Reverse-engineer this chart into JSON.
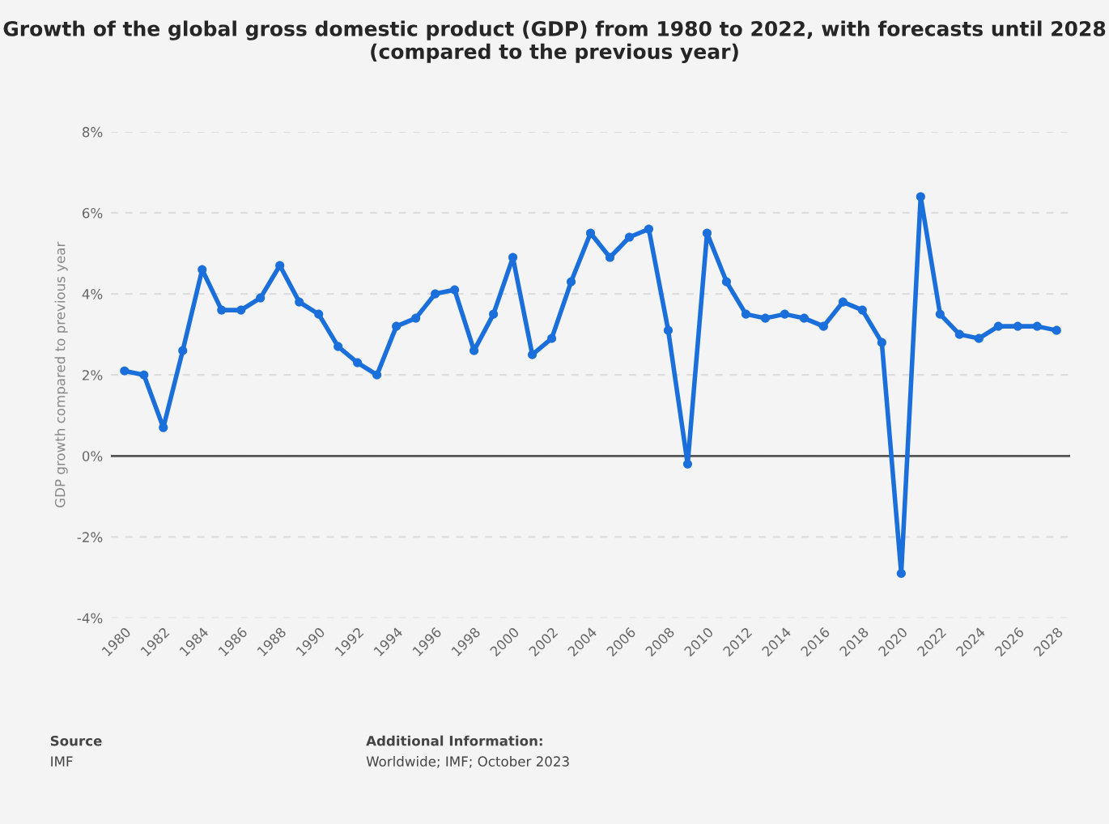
{
  "chart_data": {
    "type": "line",
    "title": "Growth of the global gross domestic product (GDP) from 1980 to 2022, with forecasts until 2028 (compared to the previous year)",
    "ylabel": "GDP growth compared to previous year",
    "categories": [
      "1980",
      null,
      "1982",
      null,
      "1984",
      null,
      "1986",
      null,
      "1988",
      null,
      "1990",
      null,
      "1992",
      null,
      "1994",
      null,
      "1996",
      null,
      "1998",
      null,
      "2000",
      null,
      "2002",
      null,
      "2004",
      null,
      "2006",
      null,
      "2008",
      null,
      "2010",
      null,
      "2012",
      null,
      "2014",
      null,
      "2016",
      null,
      "2018",
      null,
      "2020",
      null,
      "2022",
      null,
      "2024",
      null,
      "2026",
      null,
      "2028"
    ],
    "series": [
      {
        "color": "#1a6fdb",
        "values": [
          2.1,
          2.0,
          0.7,
          2.6,
          4.6,
          3.6,
          3.6,
          3.9,
          4.7,
          3.8,
          3.5,
          2.7,
          2.3,
          2.0,
          3.2,
          3.4,
          4.0,
          4.1,
          2.6,
          3.5,
          4.9,
          2.5,
          2.9,
          4.3,
          5.5,
          4.9,
          5.4,
          5.6,
          3.1,
          -0.2,
          5.5,
          4.3,
          3.5,
          3.4,
          3.5,
          3.4,
          3.2,
          3.8,
          3.6,
          2.8,
          -2.9,
          6.4,
          3.5,
          3.0,
          2.9,
          3.2,
          3.2,
          3.2,
          3.1
        ]
      }
    ],
    "ylim": [
      -4,
      8
    ],
    "yticks": [
      {
        "value": -4,
        "label": "-4%"
      },
      {
        "value": -2,
        "label": "-2%"
      },
      {
        "value": 0,
        "label": "0%"
      },
      {
        "value": 2,
        "label": "2%"
      },
      {
        "value": 4,
        "label": "4%"
      },
      {
        "value": 6,
        "label": "6%"
      },
      {
        "value": 8,
        "label": "8%"
      }
    ],
    "ref_lines": [
      {
        "axis": "y",
        "value": 0,
        "color": "#555555"
      }
    ],
    "grid": "y",
    "marker": "circle",
    "line_style": "solid",
    "legend": false,
    "annotations": [
      "Source",
      "IMF",
      "Additional Information:",
      "Worldwide; IMF; October 2023"
    ]
  }
}
